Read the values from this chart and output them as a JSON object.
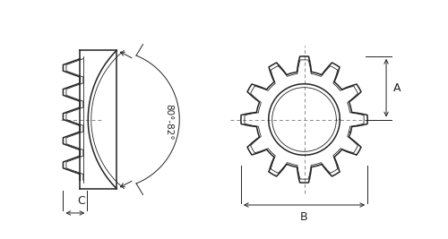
{
  "bg_color": "#ffffff",
  "line_color": "#222222",
  "dim_color": "#222222",
  "angle_text": "80°-82°",
  "label_A": "A",
  "label_B": "B",
  "label_C": "C",
  "fig_width": 5.0,
  "fig_height": 2.67,
  "dpi": 100
}
